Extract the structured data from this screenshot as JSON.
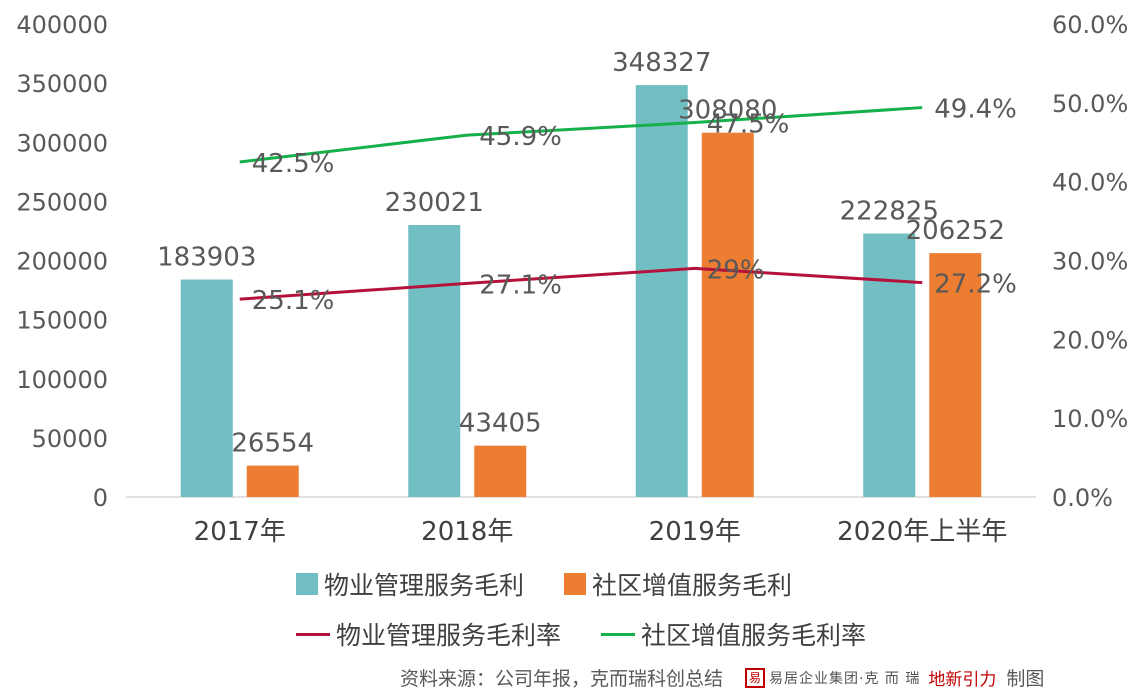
{
  "chart_data": {
    "type": "bar",
    "categories": [
      "2017年",
      "2018年",
      "2019年",
      "2020年上半年"
    ],
    "series": [
      {
        "name": "物业管理服务毛利",
        "type": "bar",
        "axis": "left",
        "color": "#72BFC3",
        "values": [
          183903,
          230021,
          348327,
          222825
        ],
        "labels": [
          "183903",
          "230021",
          "348327",
          "222825"
        ]
      },
      {
        "name": "社区增值服务毛利",
        "type": "bar",
        "axis": "left",
        "color": "#ED7D31",
        "values": [
          26554,
          43405,
          308080,
          206252
        ],
        "labels": [
          "26554",
          "43405",
          "308080",
          "206252"
        ]
      },
      {
        "name": "物业管理服务毛利率",
        "type": "line",
        "axis": "right",
        "color": "#B5123B",
        "values": [
          25.1,
          27.1,
          29,
          27.2
        ],
        "labels": [
          "25.1%",
          "27.1%",
          "29%",
          "27.2%"
        ]
      },
      {
        "name": "社区增值服务毛利率",
        "type": "line",
        "axis": "right",
        "color": "#16B04A",
        "values": [
          42.5,
          45.9,
          47.5,
          49.4
        ],
        "labels": [
          "42.5%",
          "45.9%",
          "47.5%",
          "49.4%"
        ]
      }
    ],
    "y_left": {
      "min": 0,
      "max": 400000,
      "ticks": [
        "0",
        "50000",
        "100000",
        "150000",
        "200000",
        "250000",
        "300000",
        "350000",
        "400000"
      ]
    },
    "y_right": {
      "min": 0,
      "max": 60,
      "ticks": [
        "0.0%",
        "10.0%",
        "20.0%",
        "30.0%",
        "40.0%",
        "50.0%",
        "60.0%"
      ]
    },
    "grid": false,
    "legend": "bottom"
  },
  "footer": {
    "source": "资料来源：公司年报，克而瑞科创总结",
    "logo_seal": "易",
    "logo_text1": "易居企业集团·克 而 瑞",
    "logo_text2": "地新引力",
    "credit": "制图"
  }
}
